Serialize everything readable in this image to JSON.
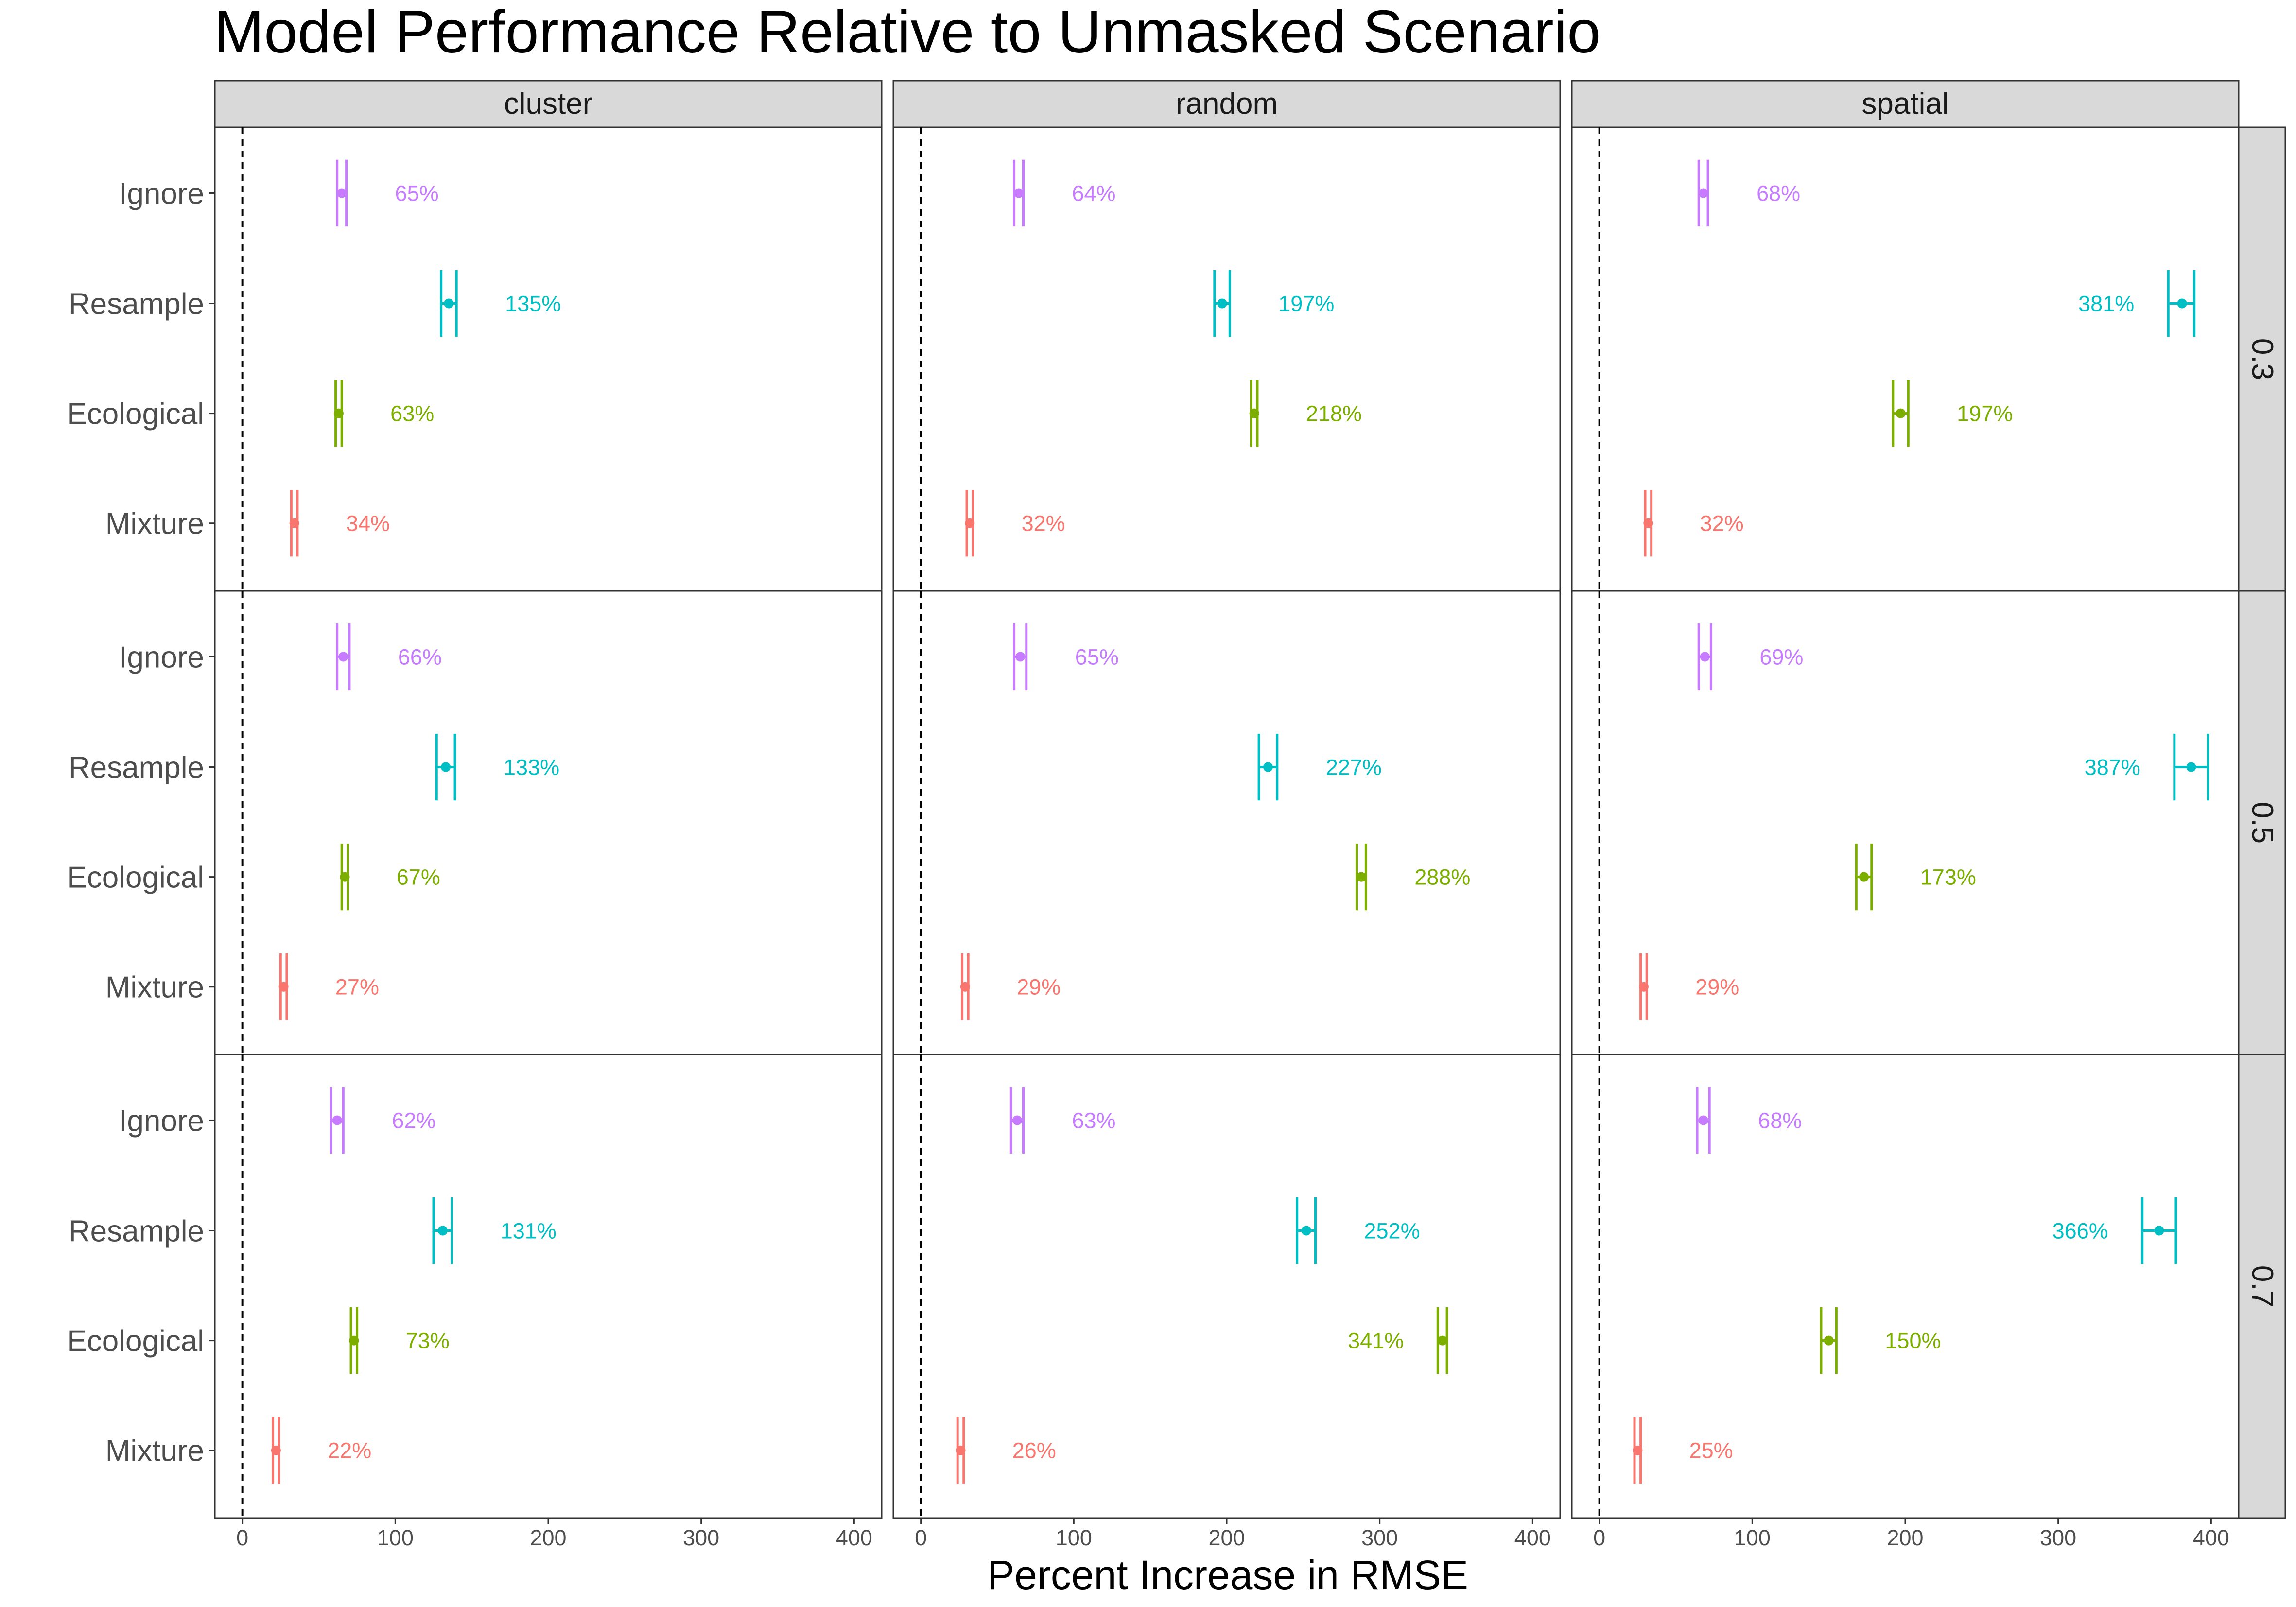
{
  "chart_data": {
    "type": "pointrange-facet",
    "title": "Model Performance Relative to Unmasked Scenario",
    "xlabel": "Percent Increase in RMSE",
    "ylabel": "",
    "xlim": [
      -18,
      418
    ],
    "x_ticks": [
      0,
      100,
      200,
      300,
      400
    ],
    "reference_line_x": 0,
    "columns": [
      "cluster",
      "random",
      "spatial"
    ],
    "rows": [
      "0.3",
      "0.5",
      "0.7"
    ],
    "categories": [
      "Ignore",
      "Resample",
      "Ecological",
      "Mixture"
    ],
    "colors": {
      "Ignore": "#C77CFF",
      "Resample": "#00BFC4",
      "Ecological": "#7CAE00",
      "Mixture": "#F8766D"
    },
    "panels": [
      {
        "column": "cluster",
        "row": "0.3",
        "points": [
          {
            "category": "Ignore",
            "value": 65,
            "low": 62,
            "high": 68,
            "label": "65%"
          },
          {
            "category": "Resample",
            "value": 135,
            "low": 130,
            "high": 140,
            "label": "135%"
          },
          {
            "category": "Ecological",
            "value": 63,
            "low": 61,
            "high": 65,
            "label": "63%"
          },
          {
            "category": "Mixture",
            "value": 34,
            "low": 32,
            "high": 36,
            "label": "34%"
          }
        ]
      },
      {
        "column": "random",
        "row": "0.3",
        "points": [
          {
            "category": "Ignore",
            "value": 64,
            "low": 61,
            "high": 67,
            "label": "64%"
          },
          {
            "category": "Resample",
            "value": 197,
            "low": 192,
            "high": 202,
            "label": "197%"
          },
          {
            "category": "Ecological",
            "value": 218,
            "low": 216,
            "high": 220,
            "label": "218%"
          },
          {
            "category": "Mixture",
            "value": 32,
            "low": 30,
            "high": 34,
            "label": "32%"
          }
        ]
      },
      {
        "column": "spatial",
        "row": "0.3",
        "points": [
          {
            "category": "Ignore",
            "value": 68,
            "low": 65,
            "high": 71,
            "label": "68%"
          },
          {
            "category": "Resample",
            "value": 381,
            "low": 372,
            "high": 389,
            "label": "381%"
          },
          {
            "category": "Ecological",
            "value": 197,
            "low": 192,
            "high": 202,
            "label": "197%"
          },
          {
            "category": "Mixture",
            "value": 32,
            "low": 30,
            "high": 34,
            "label": "32%"
          }
        ]
      },
      {
        "column": "cluster",
        "row": "0.5",
        "points": [
          {
            "category": "Ignore",
            "value": 66,
            "low": 62,
            "high": 70,
            "label": "66%"
          },
          {
            "category": "Resample",
            "value": 133,
            "low": 127,
            "high": 139,
            "label": "133%"
          },
          {
            "category": "Ecological",
            "value": 67,
            "low": 65,
            "high": 69,
            "label": "67%"
          },
          {
            "category": "Mixture",
            "value": 27,
            "low": 25,
            "high": 29,
            "label": "27%"
          }
        ]
      },
      {
        "column": "random",
        "row": "0.5",
        "points": [
          {
            "category": "Ignore",
            "value": 65,
            "low": 61,
            "high": 69,
            "label": "65%"
          },
          {
            "category": "Resample",
            "value": 227,
            "low": 221,
            "high": 233,
            "label": "227%"
          },
          {
            "category": "Ecological",
            "value": 288,
            "low": 285,
            "high": 291,
            "label": "288%"
          },
          {
            "category": "Mixture",
            "value": 29,
            "low": 27,
            "high": 31,
            "label": "29%"
          }
        ]
      },
      {
        "column": "spatial",
        "row": "0.5",
        "points": [
          {
            "category": "Ignore",
            "value": 69,
            "low": 65,
            "high": 73,
            "label": "69%"
          },
          {
            "category": "Resample",
            "value": 387,
            "low": 376,
            "high": 398,
            "label": "387%"
          },
          {
            "category": "Ecological",
            "value": 173,
            "low": 168,
            "high": 178,
            "label": "173%"
          },
          {
            "category": "Mixture",
            "value": 29,
            "low": 27,
            "high": 31,
            "label": "29%"
          }
        ]
      },
      {
        "column": "cluster",
        "row": "0.7",
        "points": [
          {
            "category": "Ignore",
            "value": 62,
            "low": 58,
            "high": 66,
            "label": "62%"
          },
          {
            "category": "Resample",
            "value": 131,
            "low": 125,
            "high": 137,
            "label": "131%"
          },
          {
            "category": "Ecological",
            "value": 73,
            "low": 71,
            "high": 75,
            "label": "73%"
          },
          {
            "category": "Mixture",
            "value": 22,
            "low": 20,
            "high": 24,
            "label": "22%"
          }
        ]
      },
      {
        "column": "random",
        "row": "0.7",
        "points": [
          {
            "category": "Ignore",
            "value": 63,
            "low": 59,
            "high": 67,
            "label": "63%"
          },
          {
            "category": "Resample",
            "value": 252,
            "low": 246,
            "high": 258,
            "label": "252%"
          },
          {
            "category": "Ecological",
            "value": 341,
            "low": 338,
            "high": 344,
            "label": "341%"
          },
          {
            "category": "Mixture",
            "value": 26,
            "low": 24,
            "high": 28,
            "label": "26%"
          }
        ]
      },
      {
        "column": "spatial",
        "row": "0.7",
        "points": [
          {
            "category": "Ignore",
            "value": 68,
            "low": 64,
            "high": 72,
            "label": "68%"
          },
          {
            "category": "Resample",
            "value": 366,
            "low": 355,
            "high": 377,
            "label": "366%"
          },
          {
            "category": "Ecological",
            "value": 150,
            "low": 145,
            "high": 155,
            "label": "150%"
          },
          {
            "category": "Mixture",
            "value": 25,
            "low": 23,
            "high": 27,
            "label": "25%"
          }
        ]
      }
    ]
  }
}
